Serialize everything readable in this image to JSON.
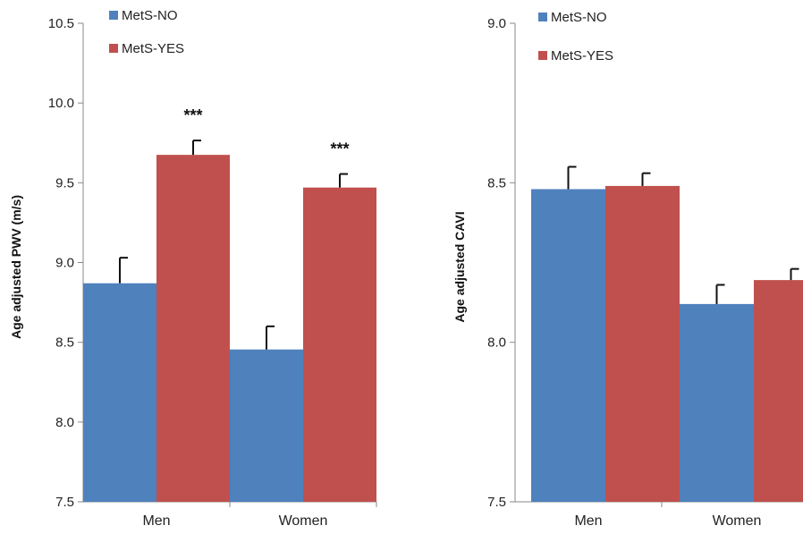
{
  "chart_data": [
    {
      "type": "bar",
      "categories": [
        "Men",
        "Women"
      ],
      "series": [
        {
          "name": "MetS-NO",
          "values": [
            8.87,
            8.455
          ],
          "errors": [
            0.16,
            0.145
          ]
        },
        {
          "name": "MetS-YES",
          "values": [
            9.675,
            9.47
          ],
          "errors": [
            0.09,
            0.085
          ]
        }
      ],
      "ylabel": "Age adjusted PWV (m/s)",
      "ylim": [
        7.5,
        10.5
      ],
      "yticks": [
        "7.5",
        "8.0",
        "8.5",
        "9.0",
        "9.5",
        "10.0",
        "10.5"
      ],
      "annotations": [
        {
          "category": "Men",
          "series": "MetS-YES",
          "text": "***"
        },
        {
          "category": "Women",
          "series": "MetS-YES",
          "text": "***"
        }
      ],
      "legend_placement": "top-left",
      "grid": false
    },
    {
      "type": "bar",
      "categories": [
        "Men",
        "Women"
      ],
      "series": [
        {
          "name": "MetS-NO",
          "values": [
            8.48,
            8.12
          ],
          "errors": [
            0.07,
            0.06
          ]
        },
        {
          "name": "MetS-YES",
          "values": [
            8.49,
            8.195
          ],
          "errors": [
            0.04,
            0.035
          ]
        }
      ],
      "ylabel": "Age adjusted CAVI",
      "ylim": [
        7.5,
        9.0
      ],
      "yticks": [
        "7.5",
        "8.0",
        "8.5",
        "9.0"
      ],
      "annotations": [],
      "legend_placement": "top-left",
      "grid": false
    }
  ],
  "colors": {
    "MetS-NO": "#4f81bd",
    "MetS-YES": "#c0504d",
    "axis": "#888888",
    "error": "#111111"
  }
}
